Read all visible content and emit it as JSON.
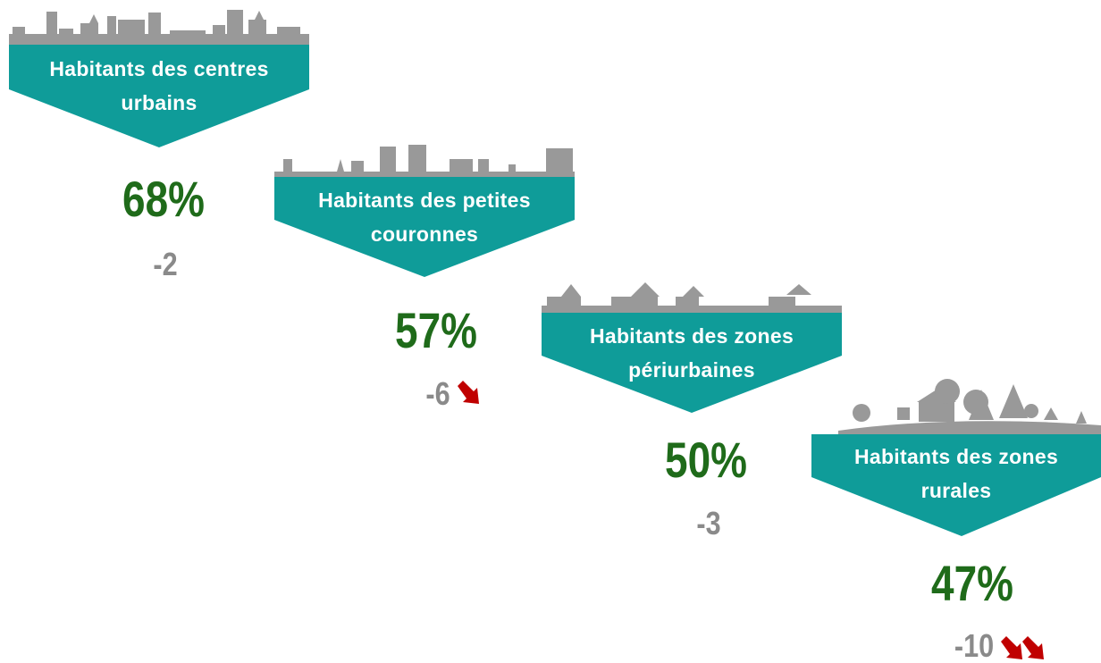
{
  "items": [
    {
      "label": "Habitants des centres urbains",
      "value": "68%",
      "change": "-2"
    },
    {
      "label": "Habitants des petites couronnes",
      "value": "57%",
      "change": "-6"
    },
    {
      "label": "Habitants des zones périurbaines",
      "value": "50%",
      "change": "-3"
    },
    {
      "label": "Habitants des zones rurales",
      "value": "47%",
      "change": "-10"
    }
  ]
}
